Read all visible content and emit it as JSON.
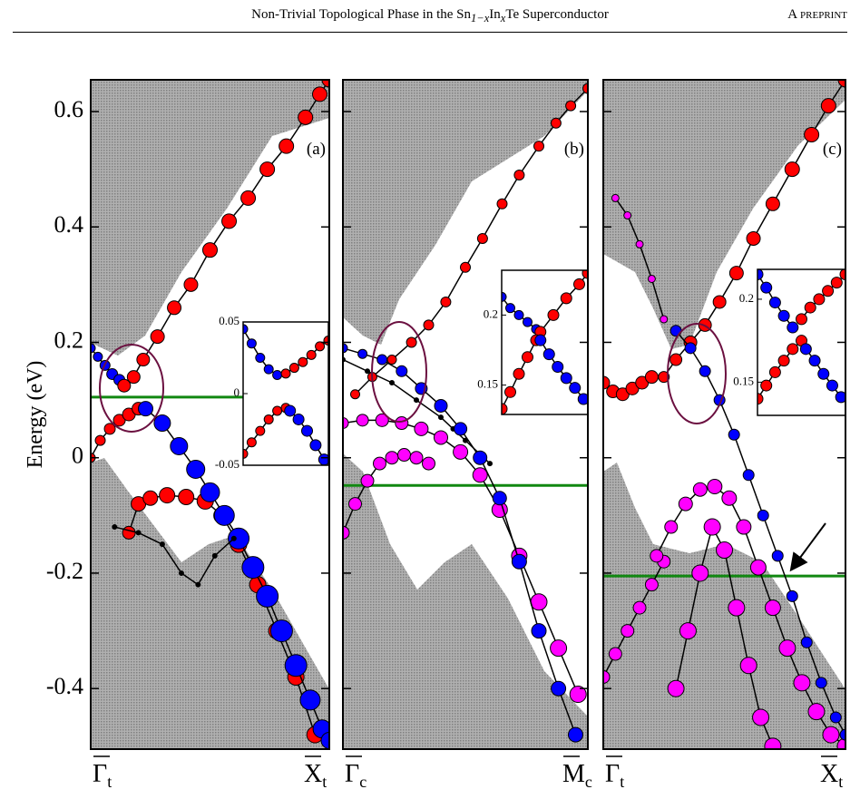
{
  "header": {
    "title_parts": [
      "Non-Trivial Topological Phase in the Sn",
      "1−x",
      "In",
      "x",
      "Te Superconductor"
    ],
    "right": "A preprint"
  },
  "chart_data": [
    {
      "type": "scatter",
      "label": "(a)",
      "y_label": "Energy (eV)",
      "x_labels": [
        {
          "symbol": "Γ",
          "sub": "t"
        },
        {
          "symbol": "X",
          "sub": "t"
        }
      ],
      "xlim": [
        0,
        1
      ],
      "ylim": [
        -0.505,
        0.655
      ],
      "yticks": [
        0.6,
        0.4,
        0.2,
        0,
        -0.2,
        -0.4
      ],
      "fermi_level": 0.105,
      "series": [
        {
          "color": "#0000ff",
          "x": [
            0,
            0.03,
            0.06,
            0.09,
            0.12
          ],
          "values": [
            0.19,
            0.175,
            0.16,
            0.145,
            0.135
          ],
          "sizes": [
            5,
            5,
            5.5,
            6,
            6
          ]
        },
        {
          "color": "#ff0000",
          "x": [
            0.14,
            0.18,
            0.22,
            0.28,
            0.35,
            0.42,
            0.5,
            0.58,
            0.66,
            0.74,
            0.82,
            0.9,
            0.96,
            1.0
          ],
          "values": [
            0.125,
            0.14,
            0.17,
            0.21,
            0.26,
            0.3,
            0.36,
            0.41,
            0.45,
            0.5,
            0.54,
            0.59,
            0.63,
            0.655
          ],
          "sizes": [
            7,
            7,
            7,
            7.5,
            7.5,
            7.5,
            8,
            8,
            8,
            8,
            8,
            8,
            8,
            8
          ]
        },
        {
          "color": "#ff0000",
          "x": [
            0,
            0.04,
            0.08,
            0.12,
            0.16,
            0.2
          ],
          "values": [
            0,
            0.03,
            0.05,
            0.065,
            0.075,
            0.085
          ],
          "sizes": [
            5,
            5.5,
            6,
            6.5,
            7,
            7
          ]
        },
        {
          "color": "#ff0000",
          "x": [
            0.16,
            0.2,
            0.25,
            0.32,
            0.4,
            0.48,
            0.55,
            0.62,
            0.7,
            0.78,
            0.86,
            0.94
          ],
          "values": [
            -0.13,
            -0.08,
            -0.07,
            -0.065,
            -0.068,
            -0.075,
            -0.1,
            -0.15,
            -0.22,
            -0.3,
            -0.38,
            -0.48
          ],
          "sizes": [
            7,
            8,
            8,
            8.5,
            8.5,
            9,
            9,
            9,
            9,
            9,
            9,
            9
          ]
        },
        {
          "color": "#0000ff",
          "x": [
            0.23,
            0.3,
            0.37,
            0.44,
            0.5,
            0.56,
            0.62,
            0.68,
            0.74,
            0.8,
            0.86,
            0.92,
            0.97,
            1.0
          ],
          "values": [
            0.085,
            0.06,
            0.02,
            -0.02,
            -0.06,
            -0.1,
            -0.14,
            -0.19,
            -0.24,
            -0.3,
            -0.36,
            -0.42,
            -0.47,
            -0.49
          ],
          "sizes": [
            8,
            9,
            9.5,
            10,
            10.5,
            11,
            11.5,
            12,
            12,
            12,
            12,
            11,
            10,
            9
          ]
        },
        {
          "color": "#000000",
          "x": [
            0.1,
            0.2,
            0.3,
            0.38,
            0.45,
            0.52,
            0.6
          ],
          "values": [
            -0.12,
            -0.13,
            -0.15,
            -0.2,
            -0.22,
            -0.17,
            -0.14
          ],
          "sizes": [
            2.5,
            2.5,
            2.5,
            2.5,
            2.5,
            2.5,
            2.5
          ]
        }
      ],
      "inset": {
        "ylim": [
          -0.05,
          0.05
        ],
        "yticks": [
          0.05,
          0,
          -0.05
        ],
        "xlim": [
          0,
          1
        ],
        "series": [
          {
            "color": "#0000ff",
            "x": [
              0,
              0.1,
              0.2,
              0.3,
              0.4
            ],
            "values": [
              0.045,
              0.035,
              0.025,
              0.017,
              0.013
            ],
            "sizes": [
              5,
              5,
              5,
              5,
              5
            ]
          },
          {
            "color": "#ff0000",
            "x": [
              0.5,
              0.6,
              0.7,
              0.8,
              0.9,
              1.0
            ],
            "values": [
              0.014,
              0.018,
              0.022,
              0.027,
              0.033,
              0.037
            ],
            "sizes": [
              5,
              5,
              5,
              5,
              5,
              5
            ]
          },
          {
            "color": "#ff0000",
            "x": [
              0,
              0.1,
              0.2,
              0.3,
              0.4,
              0.5
            ],
            "values": [
              -0.042,
              -0.034,
              -0.026,
              -0.018,
              -0.012,
              -0.01
            ],
            "sizes": [
              5,
              5,
              5,
              5,
              5,
              5
            ]
          },
          {
            "color": "#0000ff",
            "x": [
              0.55,
              0.65,
              0.75,
              0.85,
              0.95
            ],
            "values": [
              -0.012,
              -0.018,
              -0.026,
              -0.036,
              -0.046
            ],
            "sizes": [
              6,
              6,
              6,
              6,
              6
            ]
          }
        ]
      }
    },
    {
      "type": "scatter",
      "label": "(b)",
      "x_labels": [
        {
          "symbol": "Γ",
          "sub": "c"
        },
        {
          "symbol": "M",
          "sub": "c"
        }
      ],
      "xlim": [
        0,
        1
      ],
      "ylim": [
        -0.505,
        0.655
      ],
      "fermi_level": -0.048,
      "series": [
        {
          "color": "#000000",
          "x": [
            0,
            0.1,
            0.2,
            0.3,
            0.4,
            0.45,
            0.5,
            0.6
          ],
          "values": [
            0.17,
            0.15,
            0.13,
            0.1,
            0.07,
            0.05,
            0.03,
            -0.01
          ],
          "sizes": [
            2.5,
            2.5,
            2.5,
            2.5,
            2.5,
            2.5,
            2.5,
            2.5
          ]
        },
        {
          "color": "#ff0000",
          "x": [
            0.05,
            0.12,
            0.2,
            0.28,
            0.35,
            0.42,
            0.5,
            0.57,
            0.65,
            0.72,
            0.8,
            0.87,
            0.93,
            1.0
          ],
          "values": [
            0.11,
            0.14,
            0.17,
            0.2,
            0.23,
            0.27,
            0.33,
            0.38,
            0.44,
            0.49,
            0.54,
            0.58,
            0.61,
            0.64
          ],
          "sizes": [
            5,
            5,
            5,
            5.5,
            5.5,
            5.5,
            5.5,
            5.5,
            5.5,
            5.5,
            5.5,
            5.5,
            5.5,
            5.5
          ]
        },
        {
          "color": "#ff00ff",
          "x": [
            0,
            0.05,
            0.1,
            0.15,
            0.2,
            0.25,
            0.3,
            0.35
          ],
          "values": [
            -0.13,
            -0.08,
            -0.04,
            -0.01,
            0,
            0.005,
            0,
            -0.01
          ],
          "sizes": [
            7,
            7,
            7,
            7,
            7,
            7,
            7,
            7
          ]
        },
        {
          "color": "#ff00ff",
          "x": [
            0,
            0.08,
            0.16,
            0.24,
            0.32,
            0.4,
            0.48,
            0.56,
            0.64,
            0.72,
            0.8,
            0.88,
            0.96
          ],
          "values": [
            0.06,
            0.065,
            0.065,
            0.06,
            0.05,
            0.035,
            0.01,
            -0.03,
            -0.09,
            -0.17,
            -0.25,
            -0.33,
            -0.41
          ],
          "sizes": [
            6,
            6.5,
            7,
            7,
            7.5,
            7.5,
            8,
            8,
            8.5,
            8.5,
            9,
            9,
            9
          ]
        },
        {
          "color": "#0000ff",
          "x": [
            0,
            0.08,
            0.16,
            0.24,
            0.32,
            0.4,
            0.48,
            0.56,
            0.64,
            0.72,
            0.8,
            0.88,
            0.95
          ],
          "values": [
            0.19,
            0.18,
            0.17,
            0.15,
            0.12,
            0.09,
            0.05,
            0,
            -0.07,
            -0.18,
            -0.3,
            -0.4,
            -0.48
          ],
          "sizes": [
            5,
            5,
            5.5,
            6,
            6.5,
            7,
            7,
            7.5,
            7.5,
            8,
            8,
            8,
            8
          ]
        }
      ],
      "inset": {
        "ylim": [
          0.129,
          0.232
        ],
        "yticks": [
          0.2,
          0.15
        ],
        "xlim": [
          0,
          1
        ],
        "series": [
          {
            "color": "#0000ff",
            "x": [
              0,
              0.1,
              0.2,
              0.3,
              0.4
            ],
            "values": [
              0.213,
              0.205,
              0.2,
              0.195,
              0.19
            ],
            "sizes": [
              5,
              5,
              5,
              5,
              5
            ]
          },
          {
            "color": "#ff0000",
            "x": [
              0.45,
              0.6,
              0.75,
              0.9,
              1.0
            ],
            "values": [
              0.188,
              0.2,
              0.212,
              0.222,
              0.23
            ],
            "sizes": [
              6,
              6,
              6,
              6,
              6
            ]
          },
          {
            "color": "#ff0000",
            "x": [
              0,
              0.1,
              0.2,
              0.3,
              0.4
            ],
            "values": [
              0.133,
              0.145,
              0.158,
              0.17,
              0.182
            ],
            "sizes": [
              6,
              6,
              6,
              6,
              6
            ]
          },
          {
            "color": "#0000ff",
            "x": [
              0.45,
              0.55,
              0.65,
              0.75,
              0.85,
              0.95
            ],
            "values": [
              0.182,
              0.172,
              0.163,
              0.155,
              0.148,
              0.14
            ],
            "sizes": [
              6,
              6,
              6,
              6,
              6,
              6
            ]
          }
        ]
      }
    },
    {
      "type": "scatter",
      "label": "(c)",
      "x_labels": [
        {
          "symbol": "Γ",
          "sub": "t"
        },
        {
          "symbol": "X",
          "sub": "t"
        }
      ],
      "xlim": [
        0,
        1
      ],
      "ylim": [
        -0.505,
        0.655
      ],
      "fermi_level": -0.205,
      "series": [
        {
          "color": "#ff00ff",
          "x": [
            0.05,
            0.1,
            0.15,
            0.2,
            0.25
          ],
          "values": [
            0.45,
            0.42,
            0.37,
            0.31,
            0.24
          ],
          "sizes": [
            4,
            4,
            4,
            4,
            4
          ]
        },
        {
          "color": "#ff00ff",
          "x": [
            0,
            0.05,
            0.1,
            0.15,
            0.2,
            0.25
          ],
          "values": [
            -0.38,
            -0.34,
            -0.3,
            -0.26,
            -0.22,
            -0.18
          ],
          "sizes": [
            7,
            7,
            7,
            7,
            7,
            7
          ]
        },
        {
          "color": "#ff00ff",
          "x": [
            0.3,
            0.35,
            0.4,
            0.45,
            0.5,
            0.55,
            0.6,
            0.65,
            0.7
          ],
          "values": [
            -0.4,
            -0.3,
            -0.2,
            -0.12,
            -0.16,
            -0.26,
            -0.36,
            -0.45,
            -0.5
          ],
          "sizes": [
            9,
            9,
            9,
            9,
            9,
            9,
            9,
            9,
            9
          ]
        },
        {
          "color": "#ff00ff",
          "x": [
            0.22,
            0.28,
            0.34,
            0.4,
            0.46,
            0.52,
            0.58,
            0.64,
            0.7,
            0.76,
            0.82,
            0.88,
            0.94,
            1.0
          ],
          "values": [
            -0.17,
            -0.12,
            -0.08,
            -0.055,
            -0.05,
            -0.07,
            -0.12,
            -0.19,
            -0.26,
            -0.33,
            -0.39,
            -0.44,
            -0.48,
            -0.5
          ],
          "sizes": [
            7,
            7,
            7.5,
            7.5,
            8,
            8,
            8,
            8.5,
            8.5,
            9,
            9,
            9,
            9,
            9
          ]
        },
        {
          "color": "#ff0000",
          "x": [
            0,
            0.04,
            0.08,
            0.12,
            0.16,
            0.2
          ],
          "values": [
            0.13,
            0.115,
            0.11,
            0.12,
            0.13,
            0.14
          ],
          "sizes": [
            7,
            7,
            7,
            7,
            7,
            7
          ]
        },
        {
          "color": "#ff0000",
          "x": [
            0.25,
            0.3,
            0.36,
            0.42,
            0.48,
            0.55,
            0.62,
            0.7,
            0.78,
            0.86,
            0.93,
            1.0
          ],
          "values": [
            0.14,
            0.17,
            0.2,
            0.23,
            0.27,
            0.32,
            0.38,
            0.44,
            0.5,
            0.56,
            0.61,
            0.655
          ],
          "sizes": [
            6,
            6.5,
            7,
            7,
            7,
            7.5,
            7.5,
            7.5,
            8,
            8,
            8,
            8
          ]
        },
        {
          "color": "#0000ff",
          "x": [
            0.3,
            0.36,
            0.42,
            0.48,
            0.54,
            0.6,
            0.66,
            0.72,
            0.78,
            0.84,
            0.9,
            0.96,
            1.0
          ],
          "values": [
            0.22,
            0.19,
            0.15,
            0.1,
            0.04,
            -0.03,
            -0.1,
            -0.17,
            -0.24,
            -0.32,
            -0.39,
            -0.45,
            -0.48
          ],
          "sizes": [
            6,
            6,
            6,
            6,
            6,
            6,
            6,
            6,
            6,
            6,
            6,
            6,
            6
          ]
        }
      ],
      "inset": {
        "ylim": [
          0.13,
          0.218
        ],
        "yticks": [
          0.2,
          0.15
        ],
        "xlim": [
          0,
          1
        ],
        "series": [
          {
            "color": "#0000ff",
            "x": [
              0,
              0.1,
              0.2,
              0.3,
              0.4
            ],
            "values": [
              0.215,
              0.207,
              0.198,
              0.19,
              0.183
            ],
            "sizes": [
              6,
              6,
              6,
              6,
              6
            ]
          },
          {
            "color": "#ff0000",
            "x": [
              0.5,
              0.6,
              0.7,
              0.8,
              0.9,
              1.0
            ],
            "values": [
              0.188,
              0.195,
              0.2,
              0.205,
              0.21,
              0.215
            ],
            "sizes": [
              6,
              6,
              6,
              6,
              6,
              6
            ]
          },
          {
            "color": "#ff0000",
            "x": [
              0,
              0.1,
              0.2,
              0.3,
              0.4,
              0.5
            ],
            "values": [
              0.14,
              0.148,
              0.156,
              0.163,
              0.17,
              0.175
            ],
            "sizes": [
              6,
              6,
              6,
              6,
              6,
              6
            ]
          },
          {
            "color": "#0000ff",
            "x": [
              0.55,
              0.65,
              0.75,
              0.85,
              0.95
            ],
            "values": [
              0.17,
              0.163,
              0.155,
              0.148,
              0.141
            ],
            "sizes": [
              6,
              6,
              6,
              6,
              6
            ]
          }
        ]
      }
    }
  ]
}
